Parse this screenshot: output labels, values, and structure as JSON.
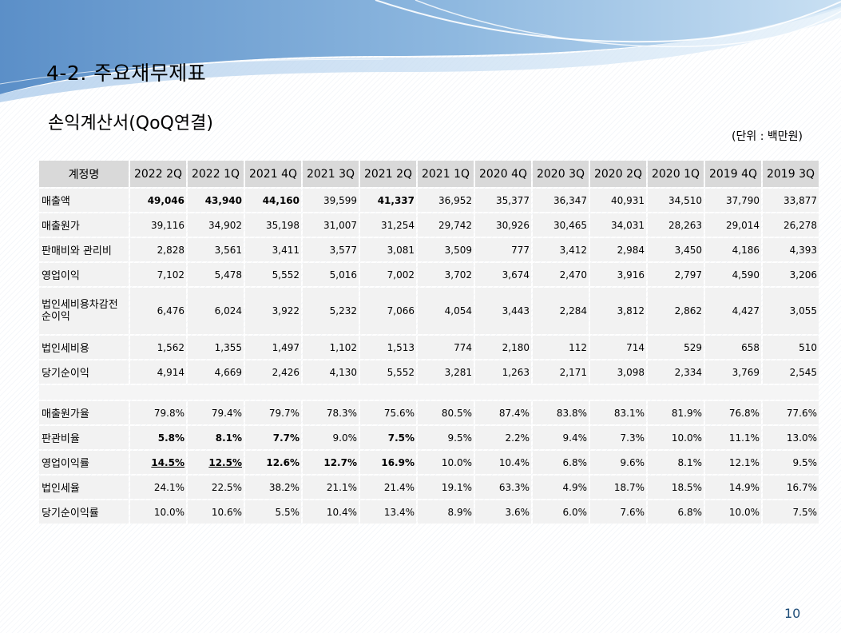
{
  "header": {
    "title": "4-2. 주요재무제표",
    "subtitle": "손익계산서(QoQ연결)",
    "unit": "(단위 : 백만원)"
  },
  "table": {
    "corner": "계정명",
    "periods": [
      "2022 2Q",
      "2022 1Q",
      "2021 4Q",
      "2021 3Q",
      "2021 2Q",
      "2021 1Q",
      "2020 4Q",
      "2020 3Q",
      "2020 2Q",
      "2020 1Q",
      "2019 4Q",
      "2019 3Q"
    ],
    "rows": [
      {
        "label": "매출액",
        "values": [
          "49,046",
          "43,940",
          "44,160",
          "39,599",
          "41,337",
          "36,952",
          "35,377",
          "36,347",
          "40,931",
          "34,510",
          "37,790",
          "33,877"
        ]
      },
      {
        "label": "매출원가",
        "values": [
          "39,116",
          "34,902",
          "35,198",
          "31,007",
          "31,254",
          "29,742",
          "30,926",
          "30,465",
          "34,031",
          "28,263",
          "29,014",
          "26,278"
        ]
      },
      {
        "label": "판매비와 관리비",
        "values": [
          "2,828",
          "3,561",
          "3,411",
          "3,577",
          "3,081",
          "3,509",
          "777",
          "3,412",
          "2,984",
          "3,450",
          "4,186",
          "4,393"
        ]
      },
      {
        "label": "영업이익",
        "values": [
          "7,102",
          "5,478",
          "5,552",
          "5,016",
          "7,002",
          "3,702",
          "3,674",
          "2,470",
          "3,916",
          "2,797",
          "4,590",
          "3,206"
        ]
      },
      {
        "label": "법인세비용차감전순이익",
        "values": [
          "6,476",
          "6,024",
          "3,922",
          "5,232",
          "7,066",
          "4,054",
          "3,443",
          "2,284",
          "3,812",
          "2,862",
          "4,427",
          "3,055"
        ]
      },
      {
        "label": "법인세비용",
        "values": [
          "1,562",
          "1,355",
          "1,497",
          "1,102",
          "1,513",
          "774",
          "2,180",
          "112",
          "714",
          "529",
          "658",
          "510"
        ]
      },
      {
        "label": "당기순이익",
        "values": [
          "4,914",
          "4,669",
          "2,426",
          "4,130",
          "5,552",
          "3,281",
          "1,263",
          "2,171",
          "3,098",
          "2,334",
          "3,769",
          "2,545"
        ]
      }
    ],
    "ratio_rows": [
      {
        "label": "매출원가율",
        "values": [
          "79.8%",
          "79.4%",
          "79.7%",
          "78.3%",
          "75.6%",
          "80.5%",
          "87.4%",
          "83.8%",
          "83.1%",
          "81.9%",
          "76.8%",
          "77.6%"
        ]
      },
      {
        "label": "판관비율",
        "values": [
          "5.8%",
          "8.1%",
          "7.7%",
          "9.0%",
          "7.5%",
          "9.5%",
          "2.2%",
          "9.4%",
          "7.3%",
          "10.0%",
          "11.1%",
          "13.0%"
        ]
      },
      {
        "label": "영업이익률",
        "values": [
          "14.5%",
          "12.5%",
          "12.6%",
          "12.7%",
          "16.9%",
          "10.0%",
          "10.4%",
          "6.8%",
          "9.6%",
          "8.1%",
          "12.1%",
          "9.5%"
        ]
      },
      {
        "label": "법인세율",
        "values": [
          "24.1%",
          "22.5%",
          "38.2%",
          "21.1%",
          "21.4%",
          "19.1%",
          "63.3%",
          "4.9%",
          "18.7%",
          "18.5%",
          "14.9%",
          "16.7%"
        ]
      },
      {
        "label": "당기순이익률",
        "values": [
          "10.0%",
          "10.6%",
          "5.5%",
          "10.4%",
          "13.4%",
          "8.9%",
          "3.6%",
          "6.0%",
          "7.6%",
          "6.8%",
          "10.0%",
          "7.5%"
        ]
      }
    ]
  },
  "footer": {
    "page_number": "10"
  },
  "colors": {
    "header_cell": "#d9d9d9",
    "body_cell": "#f2f2f2",
    "wave_blue": "#6fa3d6",
    "page_number": "#1f4e79"
  }
}
